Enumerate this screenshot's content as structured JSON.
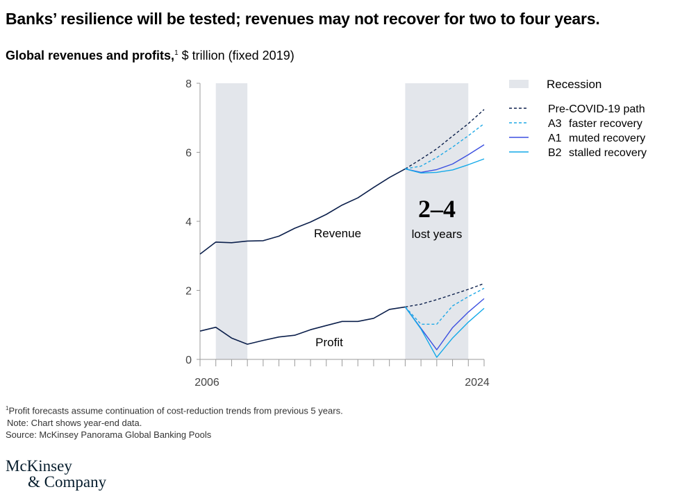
{
  "title": "Banks’ resilience will be tested; revenues may not recover for two to four years.",
  "subtitle": {
    "bold": "Global revenues and profits,",
    "sup": "1",
    "rest": " $ trillion (fixed 2019)"
  },
  "chart_data": {
    "type": "line",
    "x_start": 2006,
    "x_end": 2024,
    "x_tick_labels": [
      "2006",
      "2024"
    ],
    "ylim": [
      0,
      8
    ],
    "y_ticks": [
      0,
      2,
      4,
      6,
      8
    ],
    "grid": false,
    "legend_position": "right",
    "recessions": [
      [
        2007,
        2009
      ],
      [
        2019,
        2023
      ]
    ],
    "colors": {
      "history": "#0b1f4b",
      "pre_covid": "#0b1f4b",
      "A3": "#1fa9e6",
      "A1": "#3b4fe0",
      "B2": "#12a9e9",
      "recession": "#e3e6eb"
    },
    "series": {
      "revenue_history": {
        "x": [
          2006,
          2007,
          2008,
          2009,
          2010,
          2011,
          2012,
          2013,
          2014,
          2015,
          2016,
          2017,
          2018,
          2019
        ],
        "y": [
          3.05,
          3.4,
          3.38,
          3.43,
          3.44,
          3.57,
          3.8,
          3.98,
          4.2,
          4.47,
          4.68,
          4.98,
          5.27,
          5.52
        ]
      },
      "profit_history": {
        "x": [
          2006,
          2007,
          2008,
          2009,
          2010,
          2011,
          2012,
          2013,
          2014,
          2015,
          2016,
          2017,
          2018,
          2019
        ],
        "y": [
          0.82,
          0.93,
          0.62,
          0.44,
          0.55,
          0.65,
          0.7,
          0.86,
          0.98,
          1.1,
          1.1,
          1.19,
          1.45,
          1.52
        ]
      },
      "revenue_pre_covid": {
        "x": [
          2019,
          2020,
          2021,
          2022,
          2023,
          2024
        ],
        "y": [
          5.52,
          5.8,
          6.1,
          6.47,
          6.83,
          7.24
        ]
      },
      "revenue_A3": {
        "x": [
          2019,
          2020,
          2021,
          2022,
          2023,
          2024
        ],
        "y": [
          5.52,
          5.6,
          5.85,
          6.15,
          6.48,
          6.83
        ]
      },
      "revenue_A1": {
        "x": [
          2019,
          2020,
          2021,
          2022,
          2023,
          2024
        ],
        "y": [
          5.52,
          5.42,
          5.5,
          5.66,
          5.93,
          6.22
        ]
      },
      "revenue_B2": {
        "x": [
          2019,
          2020,
          2021,
          2022,
          2023,
          2024
        ],
        "y": [
          5.52,
          5.4,
          5.42,
          5.49,
          5.64,
          5.81
        ]
      },
      "profit_pre_covid": {
        "x": [
          2019,
          2020,
          2021,
          2022,
          2023,
          2024
        ],
        "y": [
          1.52,
          1.6,
          1.73,
          1.88,
          2.03,
          2.2
        ]
      },
      "profit_A3": {
        "x": [
          2019,
          2020,
          2021,
          2022,
          2023,
          2024
        ],
        "y": [
          1.52,
          1.02,
          1.02,
          1.55,
          1.82,
          2.06
        ]
      },
      "profit_A1": {
        "x": [
          2019,
          2020,
          2021,
          2022,
          2023,
          2024
        ],
        "y": [
          1.52,
          0.9,
          0.28,
          0.92,
          1.37,
          1.76
        ]
      },
      "profit_B2": {
        "x": [
          2019,
          2020,
          2021,
          2022,
          2023,
          2024
        ],
        "y": [
          1.52,
          0.88,
          0.06,
          0.62,
          1.08,
          1.48
        ]
      }
    },
    "annotations": {
      "revenue": "Revenue",
      "profit": "Profit",
      "big": "2–4",
      "small": "lost years"
    },
    "legend": [
      {
        "key": "recession",
        "label": "Recession",
        "code": "",
        "style": "box"
      },
      {
        "key": "pre_covid",
        "label": "Pre-COVID-19 path",
        "code": "",
        "style": "dashed"
      },
      {
        "key": "A3",
        "label": "faster recovery",
        "code": "A3",
        "style": "dashed"
      },
      {
        "key": "A1",
        "label": "muted recovery",
        "code": "A1",
        "style": "solid"
      },
      {
        "key": "B2",
        "label": "stalled recovery",
        "code": "B2",
        "style": "solid"
      }
    ]
  },
  "footnotes": {
    "note1_sup": "1",
    "note1": "Profit forecasts assume continuation of cost-reduction trends from previous 5 years.",
    "note2": "Note: Chart shows year-end data.",
    "source": "Source: McKinsey Panorama Global Banking Pools"
  },
  "logo": {
    "line1": "McKinsey",
    "line2": "& Company"
  }
}
